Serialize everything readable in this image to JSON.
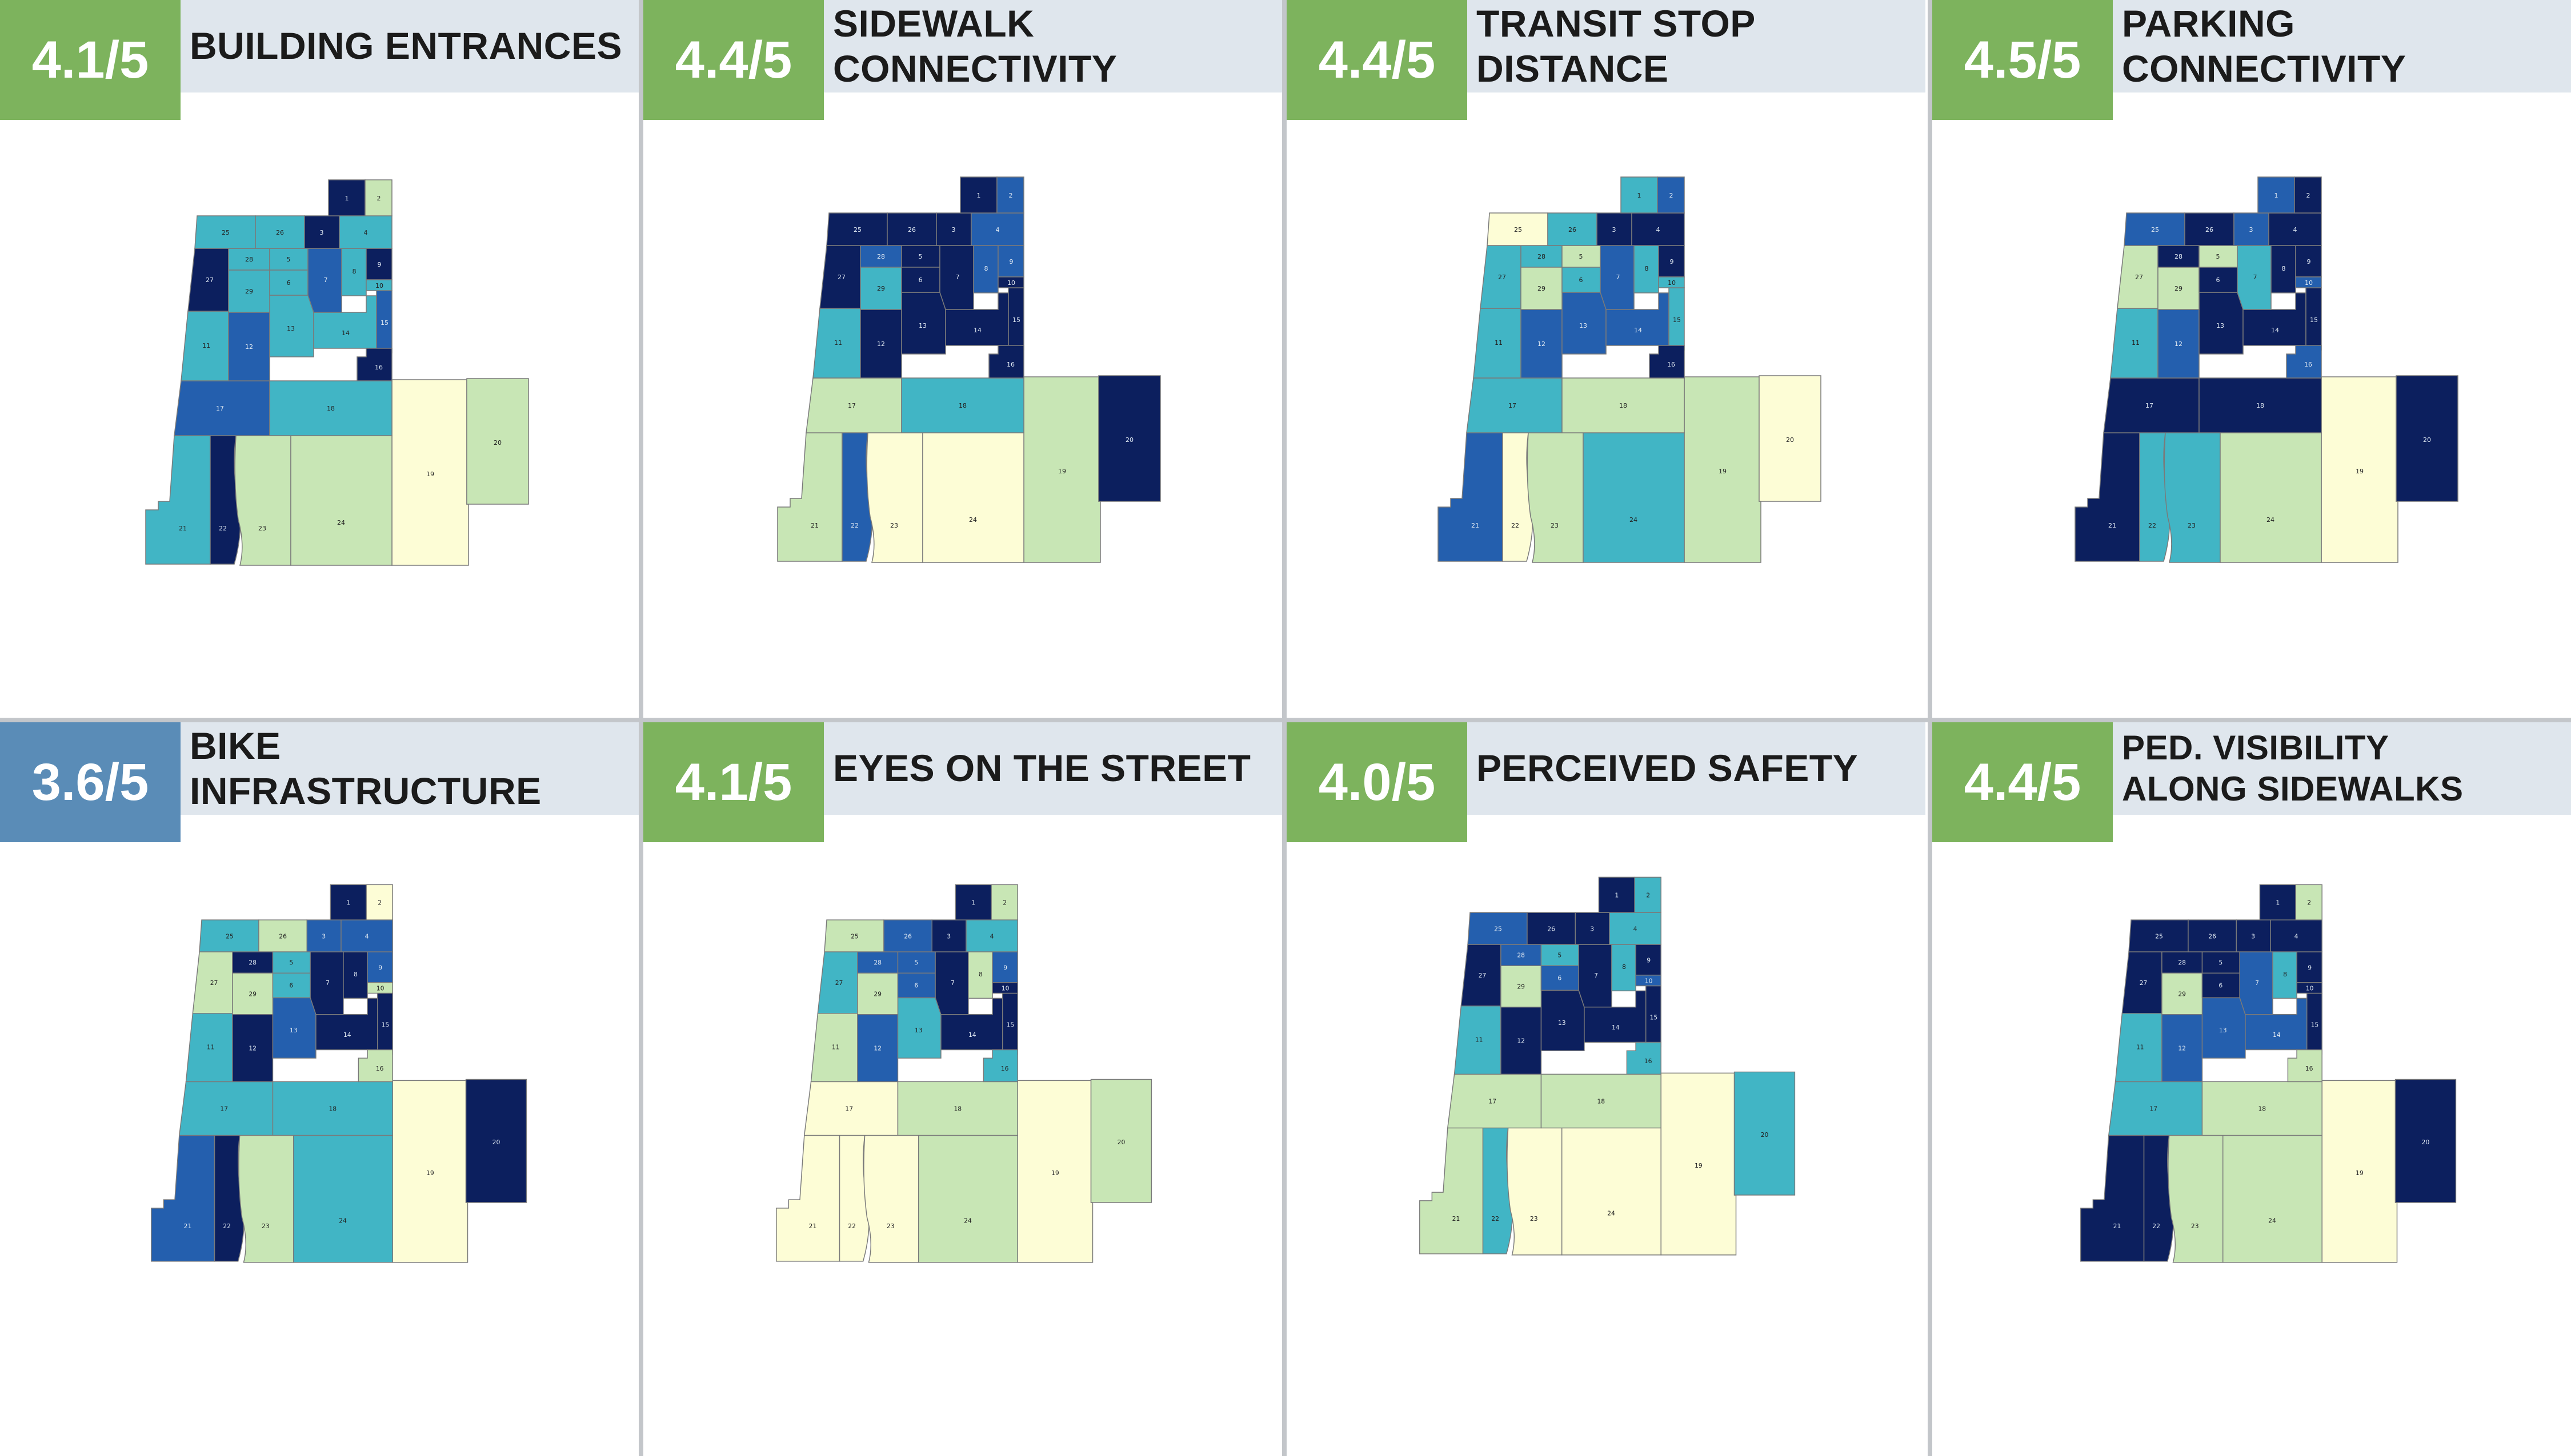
{
  "palette": {
    "c1": "#fdfdd6",
    "c2": "#c8e6b5",
    "c3": "#41b5c5",
    "c4": "#245fae",
    "c5": "#0c1f5e",
    "score_green": "#7db35d",
    "score_blue": "#5a8cb7",
    "title_bg": "#dfe6ed"
  },
  "panels": [
    {
      "score": "4.1/5",
      "title": "BUILDING ENTRANCES",
      "colors": {
        "1": 5,
        "2": 2,
        "3": 5,
        "4": 3,
        "5": 3,
        "6": 3,
        "7": 4,
        "8": 3,
        "9": 5,
        "10": 3,
        "11": 3,
        "12": 4,
        "13": 3,
        "14": 3,
        "15": 4,
        "16": 5,
        "17": 4,
        "18": 3,
        "19": 1,
        "20": 2,
        "21": 3,
        "22": 5,
        "23": 2,
        "24": 2,
        "25": 3,
        "26": 3,
        "27": 5,
        "28": 3,
        "29": 3
      }
    },
    {
      "score": "4.4/5",
      "title": "SIDEWALK CONNECTIVITY",
      "colors": {
        "1": 5,
        "2": 4,
        "3": 5,
        "4": 4,
        "5": 5,
        "6": 5,
        "7": 5,
        "8": 4,
        "9": 4,
        "10": 5,
        "11": 3,
        "12": 5,
        "13": 5,
        "14": 5,
        "15": 5,
        "16": 5,
        "17": 2,
        "18": 3,
        "19": 2,
        "20": 5,
        "21": 2,
        "22": 4,
        "23": 1,
        "24": 1,
        "25": 5,
        "26": 5,
        "27": 5,
        "28": 4,
        "29": 3
      }
    },
    {
      "score": "4.4/5",
      "title": "TRANSIT STOP DISTANCE",
      "colors": {
        "1": 3,
        "2": 4,
        "3": 5,
        "4": 5,
        "5": 2,
        "6": 3,
        "7": 4,
        "8": 3,
        "9": 5,
        "10": 3,
        "11": 3,
        "12": 4,
        "13": 4,
        "14": 4,
        "15": 3,
        "16": 5,
        "17": 3,
        "18": 2,
        "19": 2,
        "20": 1,
        "21": 4,
        "22": 1,
        "23": 2,
        "24": 3,
        "25": 1,
        "26": 3,
        "27": 3,
        "28": 3,
        "29": 2
      }
    },
    {
      "score": "4.5/5",
      "title": "PARKING CONNECTIVITY",
      "colors": {
        "1": 4,
        "2": 5,
        "3": 4,
        "4": 5,
        "5": 2,
        "6": 5,
        "7": 3,
        "8": 5,
        "9": 5,
        "10": 4,
        "11": 3,
        "12": 4,
        "13": 5,
        "14": 5,
        "15": 5,
        "16": 4,
        "17": 5,
        "18": 5,
        "19": 1,
        "20": 5,
        "21": 5,
        "22": 3,
        "23": 3,
        "24": 2,
        "25": 4,
        "26": 5,
        "27": 2,
        "28": 5,
        "29": 2
      }
    },
    {
      "score": "3.6/5",
      "title": "BIKE INFRASTRUCTURE",
      "low": true,
      "colors": {
        "1": 5,
        "2": 1,
        "3": 4,
        "4": 4,
        "5": 3,
        "6": 3,
        "7": 5,
        "8": 5,
        "9": 4,
        "10": 2,
        "11": 3,
        "12": 5,
        "13": 4,
        "14": 5,
        "15": 5,
        "16": 2,
        "17": 3,
        "18": 3,
        "19": 1,
        "20": 5,
        "21": 4,
        "22": 5,
        "23": 2,
        "24": 3,
        "25": 3,
        "26": 2,
        "27": 2,
        "28": 5,
        "29": 2
      }
    },
    {
      "score": "4.1/5",
      "title": "EYES ON THE STREET",
      "colors": {
        "1": 5,
        "2": 2,
        "3": 5,
        "4": 3,
        "5": 4,
        "6": 4,
        "7": 5,
        "8": 2,
        "9": 4,
        "10": 5,
        "11": 2,
        "12": 4,
        "13": 3,
        "14": 5,
        "15": 5,
        "16": 3,
        "17": 1,
        "18": 2,
        "19": 1,
        "20": 2,
        "21": 1,
        "22": 1,
        "23": 1,
        "24": 2,
        "25": 2,
        "26": 4,
        "27": 3,
        "28": 4,
        "29": 2
      }
    },
    {
      "score": "4.0/5",
      "title": "PERCEIVED SAFETY",
      "colors": {
        "1": 5,
        "2": 3,
        "3": 5,
        "4": 3,
        "5": 3,
        "6": 4,
        "7": 5,
        "8": 3,
        "9": 5,
        "10": 4,
        "11": 3,
        "12": 5,
        "13": 5,
        "14": 5,
        "15": 5,
        "16": 3,
        "17": 2,
        "18": 2,
        "19": 1,
        "20": 3,
        "21": 2,
        "22": 3,
        "23": 1,
        "24": 1,
        "25": 4,
        "26": 5,
        "27": 5,
        "28": 4,
        "29": 2
      }
    },
    {
      "score": "4.4/5",
      "title": "PED. VISIBILITY\nALONG SIDEWALKS",
      "colors": {
        "1": 5,
        "2": 2,
        "3": 5,
        "4": 5,
        "5": 5,
        "6": 5,
        "7": 4,
        "8": 3,
        "9": 5,
        "10": 5,
        "11": 3,
        "12": 4,
        "13": 4,
        "14": 4,
        "15": 5,
        "16": 2,
        "17": 3,
        "18": 2,
        "19": 1,
        "20": 5,
        "21": 5,
        "22": 5,
        "23": 2,
        "24": 2,
        "25": 5,
        "26": 5,
        "27": 5,
        "28": 5,
        "29": 2
      }
    }
  ]
}
